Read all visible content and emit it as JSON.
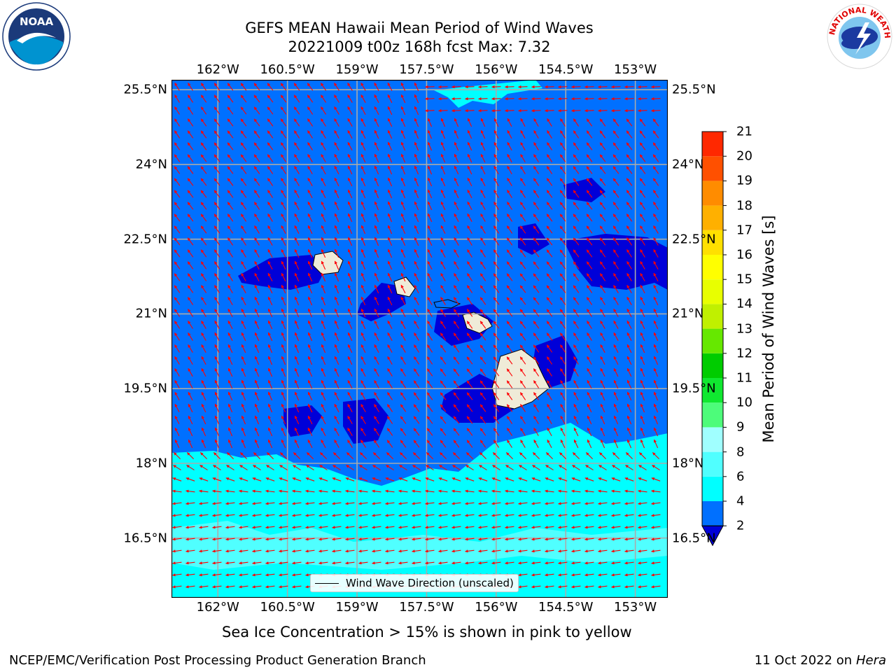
{
  "title_line1": "GEFS MEAN Hawaii Mean Period of Wind Waves",
  "title_line2": "20221009 t00z 168h fcst   Max: 7.32",
  "subtitle": "Sea Ice Concentration > 15% is shown in pink to yellow",
  "footer_left": "NCEP/EMC/Verification Post Processing Product Generation Branch",
  "footer_date": "11 Oct 2022 on",
  "footer_host": "Hera",
  "legend_label": "Wind Wave Direction (unscaled)",
  "logos": {
    "noaa_text": "NOAA",
    "nws_text": "NATIONAL WEATHER SERVICE"
  },
  "map": {
    "lon_labels": [
      "162°W",
      "160.5°W",
      "159°W",
      "157.5°W",
      "156°W",
      "154.5°W",
      "153°W"
    ],
    "lat_labels": [
      "25.5°N",
      "24°N",
      "22.5°N",
      "21°N",
      "19.5°N",
      "18°N",
      "16.5°N"
    ],
    "lon_range": [
      -163,
      -152.3
    ],
    "lat_range": [
      15.3,
      25.7
    ],
    "colors": {
      "below2": "#0000d8",
      "b2_4": "#0070ff",
      "b4_6": "#00ffff",
      "b6_8": "#50ffff",
      "land": "#efebd8",
      "arrow": "#ff0000",
      "grid": "#aaaaaa"
    }
  },
  "colorbar": {
    "label": "Mean Period of Wind Waves [s]",
    "ticks": [
      "2",
      "4",
      "6",
      "8",
      "9",
      "10",
      "11",
      "12",
      "13",
      "14",
      "15",
      "16",
      "17",
      "18",
      "19",
      "20",
      "21"
    ],
    "colors": [
      "#0070ff",
      "#00ffff",
      "#50ffff",
      "#a0ffff",
      "#4dfc7a",
      "#10e830",
      "#00cc00",
      "#66e800",
      "#c0f000",
      "#e8ff00",
      "#ffff00",
      "#ffe000",
      "#ffb000",
      "#ff8c00",
      "#ff5000",
      "#ff2800",
      "#ff0000"
    ],
    "under_color": "#0000d8"
  }
}
